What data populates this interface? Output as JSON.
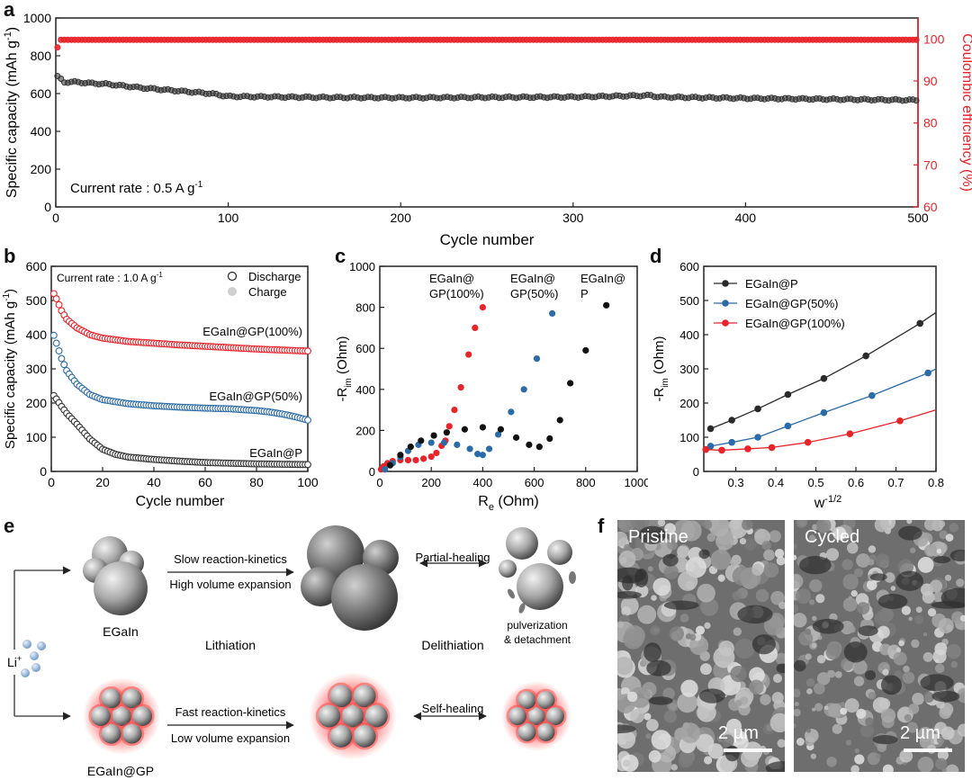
{
  "panel_labels": {
    "a": "a",
    "b": "b",
    "c": "c",
    "d": "d",
    "e": "e",
    "f": "f"
  },
  "colors": {
    "red": "#e8232a",
    "blue": "#2b6ba8",
    "black": "#2a2a2a",
    "gray": "#9a9a9a"
  },
  "chart_data": [
    {
      "id": "a",
      "type": "scatter",
      "xlabel": "Cycle number",
      "ylabel": "Specific capacity (mAh g",
      "ylabel_sup": "-1",
      "ylabel_close": ")",
      "y2label": "Coulombic efficiency (%)",
      "xlim": [
        0,
        500
      ],
      "ylim": [
        0,
        1000
      ],
      "y2lim": [
        60,
        105
      ],
      "xticks": [
        "0",
        "100",
        "200",
        "300",
        "400",
        "500"
      ],
      "yticks": [
        "0",
        "200",
        "400",
        "600",
        "800",
        "1000"
      ],
      "y2ticks": [
        "60",
        "70",
        "80",
        "90",
        "100"
      ],
      "annotation": "Current rate : 0.5 A g",
      "annotation_sup": "-1",
      "series": [
        {
          "axis": "left",
          "color": "#333333",
          "x": [
            1,
            5,
            10,
            20,
            30,
            50,
            70,
            90,
            100,
            150,
            200,
            250,
            300,
            345,
            350,
            400,
            450,
            500
          ],
          "y": [
            690,
            660,
            662,
            655,
            650,
            630,
            615,
            600,
            585,
            580,
            578,
            580,
            582,
            590,
            582,
            575,
            570,
            565
          ]
        },
        {
          "axis": "right",
          "color": "#e8232a",
          "x": [
            1,
            2,
            3,
            10,
            100,
            200,
            300,
            400,
            500
          ],
          "y": [
            98,
            99.7,
            99.8,
            99.8,
            99.8,
            99.8,
            99.8,
            99.8,
            99.8
          ]
        }
      ]
    },
    {
      "id": "b",
      "type": "scatter",
      "xlabel": "Cycle number",
      "ylabel": "Specific capacity (mAh g",
      "ylabel_sup": "-1",
      "ylabel_close": ")",
      "xlim": [
        0,
        100
      ],
      "ylim": [
        0,
        600
      ],
      "xticks": [
        "0",
        "20",
        "40",
        "60",
        "80",
        "100"
      ],
      "yticks": [
        "0",
        "100",
        "200",
        "300",
        "400",
        "500",
        "600"
      ],
      "annotation": "Current rate : 1.0 A g",
      "annotation_sup": "-1",
      "legend": [
        "Discharge",
        "Charge"
      ],
      "legend_position": "top-right",
      "series": [
        {
          "name": "EGaIn@GP(100%)",
          "color": "#e8232a",
          "x": [
            1,
            2,
            4,
            6,
            10,
            15,
            20,
            30,
            40,
            50,
            60,
            70,
            80,
            90,
            100
          ],
          "y": [
            520,
            505,
            470,
            445,
            420,
            400,
            390,
            380,
            375,
            370,
            366,
            362,
            358,
            355,
            352
          ]
        },
        {
          "name": "EGaIn@GP(50%)",
          "color": "#2b6ba8",
          "x": [
            1,
            2,
            4,
            6,
            10,
            15,
            20,
            30,
            40,
            50,
            60,
            70,
            80,
            85,
            90,
            95,
            100
          ],
          "y": [
            398,
            375,
            330,
            295,
            255,
            225,
            210,
            198,
            192,
            188,
            185,
            183,
            178,
            174,
            168,
            160,
            150
          ]
        },
        {
          "name": "EGaIn@P",
          "color": "#333333",
          "x": [
            1,
            2,
            4,
            6,
            10,
            15,
            20,
            25,
            30,
            40,
            50,
            60,
            70,
            80,
            90,
            100
          ],
          "y": [
            222,
            212,
            190,
            170,
            138,
            95,
            65,
            50,
            42,
            35,
            30,
            26,
            24,
            22,
            21,
            20
          ]
        }
      ]
    },
    {
      "id": "c",
      "type": "scatter",
      "xlabel": "R",
      "xlabel_sub": "e",
      "xlabel_unit": " (Ohm)",
      "ylabel_prefix": "-R",
      "ylabel_sub": "im",
      "ylabel_unit": " (Ohm)",
      "xlim": [
        0,
        1000
      ],
      "ylim": [
        0,
        1000
      ],
      "xticks": [
        "0",
        "200",
        "400",
        "600",
        "800",
        "1000"
      ],
      "yticks": [
        "0",
        "200",
        "400",
        "600",
        "800",
        "1000"
      ],
      "series": [
        {
          "name_lines": [
            "EGaIn@",
            "GP(100%)"
          ],
          "color": "#e8232a",
          "x": [
            5,
            15,
            30,
            50,
            80,
            110,
            140,
            170,
            200,
            220,
            240,
            255,
            270,
            290,
            315,
            345,
            370,
            400
          ],
          "y": [
            10,
            25,
            40,
            50,
            55,
            55,
            55,
            62,
            72,
            90,
            125,
            150,
            220,
            300,
            410,
            570,
            700,
            800
          ]
        },
        {
          "name_lines": [
            "EGaIn@",
            "GP(50%)"
          ],
          "color": "#2b6ba8",
          "x": [
            20,
            50,
            80,
            110,
            150,
            200,
            250,
            300,
            350,
            380,
            400,
            425,
            460,
            510,
            560,
            610,
            670
          ],
          "y": [
            10,
            40,
            70,
            100,
            130,
            140,
            140,
            130,
            110,
            85,
            80,
            110,
            180,
            290,
            400,
            550,
            770
          ]
        },
        {
          "name_lines": [
            "EGaIn@",
            "P"
          ],
          "color": "#111111",
          "x": [
            40,
            80,
            120,
            160,
            210,
            260,
            330,
            400,
            470,
            530,
            580,
            620,
            660,
            700,
            740,
            800,
            880
          ],
          "y": [
            30,
            80,
            120,
            150,
            175,
            190,
            205,
            215,
            205,
            165,
            130,
            120,
            160,
            250,
            430,
            590,
            810
          ]
        }
      ]
    },
    {
      "id": "d",
      "type": "line",
      "xlabel": "w",
      "xlabel_sup": "-1/2",
      "ylabel_prefix": "-R",
      "ylabel_sub": "im",
      "ylabel_unit": " (Ohm)",
      "xlim": [
        0.22,
        0.8
      ],
      "ylim": [
        0,
        600
      ],
      "xticks": [
        "0.3",
        "0.4",
        "0.5",
        "0.6",
        "0.7",
        "0.8"
      ],
      "yticks": [
        "0",
        "100",
        "200",
        "300",
        "400",
        "500",
        "600"
      ],
      "legend_position": "top-left",
      "series": [
        {
          "name": "EGaIn@P",
          "color": "#2a2a2a",
          "x": [
            0.237,
            0.29,
            0.355,
            0.43,
            0.52,
            0.625,
            0.76
          ],
          "y": [
            125,
            150,
            183,
            225,
            272,
            338,
            433
          ],
          "fit_end": [
            0.8,
            465
          ]
        },
        {
          "name": "EGaIn@GP(50%)",
          "color": "#2b6ba8",
          "x": [
            0.237,
            0.29,
            0.355,
            0.43,
            0.52,
            0.64,
            0.78
          ],
          "y": [
            74,
            85,
            100,
            133,
            172,
            222,
            288
          ],
          "fit_end": [
            0.8,
            300
          ]
        },
        {
          "name": "EGaIn@GP(100%)",
          "color": "#e8232a",
          "x": [
            0.225,
            0.265,
            0.33,
            0.39,
            0.48,
            0.585,
            0.71
          ],
          "y": [
            64,
            62,
            66,
            70,
            85,
            110,
            148
          ],
          "fit_end": [
            0.8,
            180
          ]
        }
      ]
    }
  ],
  "schematic": {
    "egain_label": "EGaIn",
    "egaingp_label": "EGaIn@GP",
    "li_label": "Li",
    "li_sup": "+",
    "top_arrow1_line1": "Slow reaction-kinetics",
    "top_arrow1_line2": "High volume expansion",
    "top_arrow2_label": "Partial-healing",
    "pulverization_line1": "pulverization",
    "pulverization_line2": "& detachment",
    "lithiation_label": "Lithiation",
    "delithiation_label": "Delithiation",
    "bottom_arrow1_line1": "Fast reaction-kinetics",
    "bottom_arrow1_line2": "Low volume expansion",
    "bottom_arrow2_label": "Self-healing"
  },
  "sem": {
    "left_label": "Pristine",
    "right_label": "Cycled",
    "scale_left": "2 µm",
    "scale_right": "2 µm"
  }
}
